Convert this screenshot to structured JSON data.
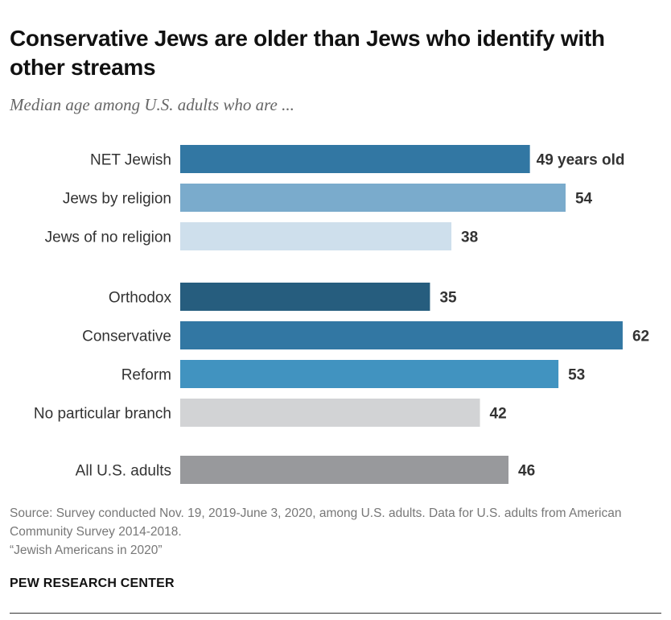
{
  "title": "Conservative Jews are older than Jews who identify with other streams",
  "subtitle": "Median age among U.S. adults who are ...",
  "chart_data": {
    "type": "bar",
    "orientation": "horizontal",
    "categories": [
      "NET Jewish",
      "Jews by religion",
      "Jews of no religion",
      "Orthodox",
      "Conservative",
      "Reform",
      "No particular branch",
      "All U.S. adults"
    ],
    "values": [
      49,
      54,
      38,
      35,
      62,
      53,
      42,
      46
    ],
    "value_labels": [
      "49 years old",
      "54",
      "38",
      "35",
      "62",
      "53",
      "42",
      "46"
    ],
    "colors": [
      "#3277a3",
      "#7aabcc",
      "#cedfec",
      "#265d7e",
      "#3277a3",
      "#4193c0",
      "#d2d3d5",
      "#98999c"
    ],
    "groups": [
      [
        0,
        1,
        2
      ],
      [
        3,
        4,
        5,
        6
      ],
      [
        7
      ]
    ],
    "xlim": [
      0,
      62
    ],
    "grid": false,
    "axis_visible": false
  },
  "notes": {
    "source": "Source: Survey conducted Nov. 19, 2019-June 3, 2020, among U.S. adults. Data for U.S. adults from American Community Survey 2014-2018.",
    "report": "“Jewish Americans in 2020”"
  },
  "logo": "PEW RESEARCH CENTER"
}
